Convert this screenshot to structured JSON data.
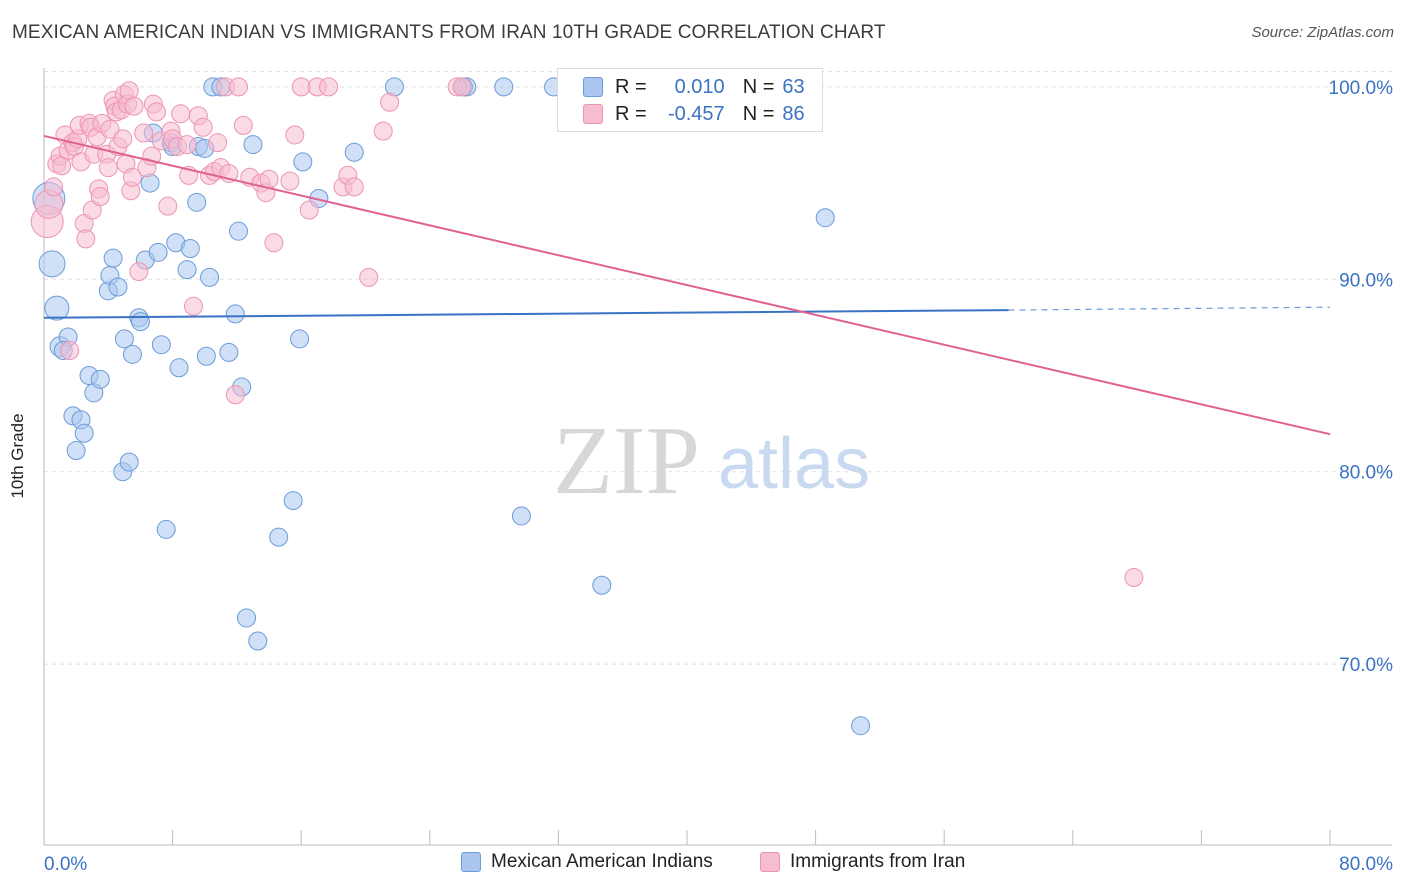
{
  "title": "MEXICAN AMERICAN INDIAN VS IMMIGRANTS FROM IRAN 10TH GRADE CORRELATION CHART",
  "source": "Source: ZipAtlas.com",
  "watermark": {
    "zip": "ZIP",
    "atlas": "atlas"
  },
  "colors": {
    "blue": "#3a73c4",
    "blue_fill": "#aac6ee",
    "blue_stroke": "#6c9bd8",
    "pink": "#e0628f",
    "pink_fill": "#f6bcd0",
    "pink_stroke": "#ee94b3",
    "grid": "#e0e0e0",
    "axis_text": "#3a73c4"
  },
  "legend": {
    "r_label": "R =",
    "n_label": "N =",
    "series": [
      {
        "r": "0.010",
        "n": "63"
      },
      {
        "r": "-0.457",
        "n": "86"
      }
    ]
  },
  "bottom_legend": [
    "Mexican American Indians",
    "Immigrants from Iran"
  ],
  "chart_data": {
    "type": "scatter",
    "xlabel": "",
    "ylabel": "10th Grade",
    "xlim": [
      0,
      80
    ],
    "ylim": [
      60.6,
      101.5
    ],
    "x_tick_labels": [
      "0.0%",
      "80.0%"
    ],
    "y_ticks": [
      70,
      80,
      90,
      100
    ],
    "y_tick_labels": [
      "70.0%",
      "80.0%",
      "90.0%",
      "100.0%"
    ],
    "legend_position": "top-center",
    "series": [
      {
        "name": "Mexican American Indians",
        "trend": {
          "x0": 0,
          "y0": 88.0,
          "x1": 60,
          "y1": 88.4,
          "x_dash_end": 80,
          "y_dash_end": 88.55
        },
        "points": [
          [
            0.3,
            94.2,
            16
          ],
          [
            0.5,
            90.8,
            13
          ],
          [
            0.8,
            88.5,
            12
          ],
          [
            1.0,
            86.5,
            10
          ],
          [
            1.5,
            87.0,
            9
          ],
          [
            1.2,
            86.3,
            9
          ],
          [
            1.8,
            82.9,
            9
          ],
          [
            2.3,
            82.7,
            9
          ],
          [
            2.5,
            82.0,
            9
          ],
          [
            2.0,
            81.1,
            9
          ],
          [
            2.8,
            85.0,
            9
          ],
          [
            3.1,
            84.1,
            9
          ],
          [
            3.5,
            84.8,
            9
          ],
          [
            4.0,
            89.4,
            9
          ],
          [
            4.1,
            90.2,
            9
          ],
          [
            4.3,
            91.1,
            9
          ],
          [
            4.6,
            89.6,
            9
          ],
          [
            4.9,
            80.0,
            9
          ],
          [
            5.0,
            86.9,
            9
          ],
          [
            5.3,
            80.5,
            9
          ],
          [
            5.5,
            86.1,
            9
          ],
          [
            5.9,
            88.0,
            9
          ],
          [
            6.0,
            87.8,
            9
          ],
          [
            6.3,
            91.0,
            9
          ],
          [
            6.6,
            95.0,
            9
          ],
          [
            6.8,
            97.6,
            9
          ],
          [
            7.1,
            91.4,
            9
          ],
          [
            7.3,
            86.6,
            9
          ],
          [
            7.6,
            77.0,
            9
          ],
          [
            7.9,
            97.1,
            9
          ],
          [
            8.0,
            96.9,
            9
          ],
          [
            8.2,
            91.9,
            9
          ],
          [
            8.4,
            85.4,
            9
          ],
          [
            8.9,
            90.5,
            9
          ],
          [
            9.1,
            91.6,
            9
          ],
          [
            9.6,
            96.9,
            9
          ],
          [
            9.5,
            94.0,
            9
          ],
          [
            10.0,
            96.8,
            9
          ],
          [
            10.1,
            86.0,
            9
          ],
          [
            10.3,
            90.1,
            9
          ],
          [
            10.5,
            100.0,
            9
          ],
          [
            11.0,
            100.0,
            9
          ],
          [
            11.5,
            86.2,
            9
          ],
          [
            11.9,
            88.2,
            9
          ],
          [
            12.1,
            92.5,
            9
          ],
          [
            12.3,
            84.4,
            9
          ],
          [
            12.6,
            72.4,
            9
          ],
          [
            13.0,
            97.0,
            9
          ],
          [
            13.3,
            71.2,
            9
          ],
          [
            14.6,
            76.6,
            9
          ],
          [
            15.5,
            78.5,
            9
          ],
          [
            15.9,
            86.9,
            9
          ],
          [
            16.1,
            96.1,
            9
          ],
          [
            17.1,
            94.2,
            9
          ],
          [
            19.3,
            96.6,
            9
          ],
          [
            21.8,
            100.0,
            9
          ],
          [
            26.1,
            100.0,
            9
          ],
          [
            26.3,
            100.0,
            9
          ],
          [
            28.6,
            100.0,
            9
          ],
          [
            29.7,
            77.7,
            9
          ],
          [
            31.7,
            100.0,
            9
          ],
          [
            34.7,
            74.1,
            9
          ],
          [
            48.6,
            93.2,
            9
          ],
          [
            50.8,
            66.8,
            9
          ]
        ]
      },
      {
        "name": "Immigrants from Iran",
        "trend": {
          "x0": 0,
          "y0": 97.45,
          "x1": 80,
          "y1": 81.95
        },
        "points": [
          [
            0.2,
            93.0,
            16
          ],
          [
            0.3,
            93.9,
            14
          ],
          [
            0.6,
            94.8,
            9
          ],
          [
            0.8,
            96.0,
            9
          ],
          [
            1.0,
            96.4,
            9
          ],
          [
            1.1,
            95.9,
            9
          ],
          [
            1.3,
            97.5,
            9
          ],
          [
            1.5,
            96.7,
            9
          ],
          [
            1.6,
            86.3,
            9
          ],
          [
            1.8,
            97.1,
            9
          ],
          [
            1.9,
            96.9,
            9
          ],
          [
            2.1,
            97.3,
            9
          ],
          [
            2.2,
            98.0,
            9
          ],
          [
            2.3,
            96.1,
            9
          ],
          [
            2.5,
            92.9,
            9
          ],
          [
            2.6,
            92.1,
            9
          ],
          [
            2.8,
            98.1,
            9
          ],
          [
            2.9,
            97.9,
            9
          ],
          [
            3.0,
            93.6,
            9
          ],
          [
            3.1,
            96.5,
            9
          ],
          [
            3.3,
            97.4,
            9
          ],
          [
            3.4,
            94.7,
            9
          ],
          [
            3.5,
            94.3,
            9
          ],
          [
            3.6,
            98.1,
            9
          ],
          [
            3.9,
            96.5,
            9
          ],
          [
            4.0,
            95.8,
            9
          ],
          [
            4.1,
            97.8,
            9
          ],
          [
            4.3,
            99.3,
            9
          ],
          [
            4.4,
            99.0,
            9
          ],
          [
            4.5,
            98.7,
            9
          ],
          [
            4.6,
            96.9,
            9
          ],
          [
            4.8,
            98.8,
            9
          ],
          [
            4.9,
            97.3,
            9
          ],
          [
            5.0,
            99.6,
            9
          ],
          [
            5.1,
            96.0,
            9
          ],
          [
            5.2,
            99.1,
            9
          ],
          [
            5.3,
            99.8,
            9
          ],
          [
            5.4,
            94.6,
            9
          ],
          [
            5.5,
            95.3,
            9
          ],
          [
            5.6,
            99.0,
            9
          ],
          [
            5.9,
            90.4,
            9
          ],
          [
            6.2,
            97.6,
            9
          ],
          [
            6.4,
            95.8,
            9
          ],
          [
            6.7,
            96.4,
            9
          ],
          [
            6.8,
            99.1,
            9
          ],
          [
            7.0,
            98.7,
            9
          ],
          [
            7.3,
            97.2,
            9
          ],
          [
            7.7,
            93.8,
            9
          ],
          [
            7.9,
            97.7,
            9
          ],
          [
            8.0,
            97.3,
            9
          ],
          [
            8.3,
            96.9,
            9
          ],
          [
            8.5,
            98.6,
            9
          ],
          [
            8.9,
            97.0,
            9
          ],
          [
            9.0,
            95.4,
            9
          ],
          [
            9.3,
            88.6,
            9
          ],
          [
            9.6,
            98.5,
            9
          ],
          [
            9.9,
            97.9,
            9
          ],
          [
            10.3,
            95.4,
            9
          ],
          [
            10.6,
            95.6,
            9
          ],
          [
            10.8,
            97.1,
            9
          ],
          [
            11.0,
            95.8,
            9
          ],
          [
            11.3,
            100.0,
            9
          ],
          [
            11.5,
            95.5,
            9
          ],
          [
            11.9,
            84.0,
            9
          ],
          [
            12.1,
            100.0,
            9
          ],
          [
            12.4,
            98.0,
            9
          ],
          [
            12.8,
            95.3,
            9
          ],
          [
            13.5,
            95.0,
            9
          ],
          [
            13.8,
            94.5,
            9
          ],
          [
            14.0,
            95.2,
            9
          ],
          [
            14.3,
            91.9,
            9
          ],
          [
            15.3,
            95.1,
            9
          ],
          [
            15.6,
            97.5,
            9
          ],
          [
            16.0,
            100.0,
            9
          ],
          [
            16.5,
            93.6,
            9
          ],
          [
            17.0,
            100.0,
            9
          ],
          [
            17.7,
            100.0,
            9
          ],
          [
            18.6,
            94.8,
            9
          ],
          [
            18.9,
            95.4,
            9
          ],
          [
            19.3,
            94.8,
            9
          ],
          [
            20.2,
            90.1,
            9
          ],
          [
            21.1,
            97.7,
            9
          ],
          [
            21.5,
            99.2,
            9
          ],
          [
            25.7,
            100.0,
            9
          ],
          [
            26.0,
            100.0,
            9
          ],
          [
            67.8,
            74.5,
            9
          ]
        ]
      }
    ]
  }
}
